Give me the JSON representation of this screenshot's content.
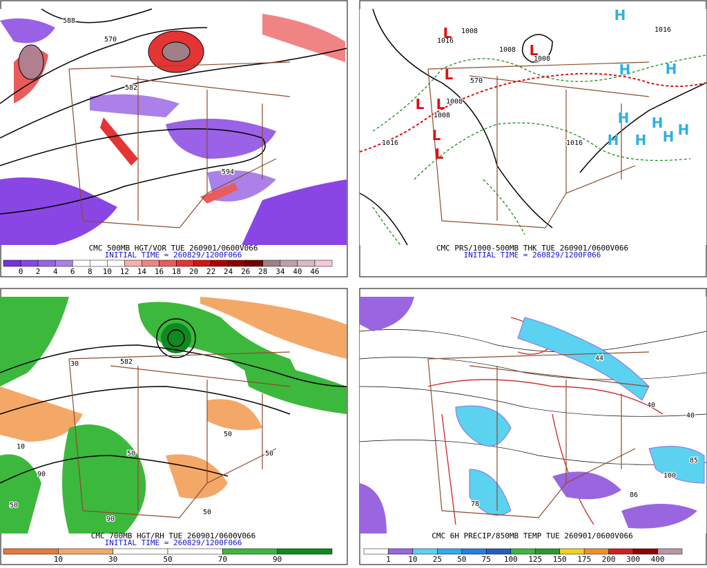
{
  "panels": [
    {
      "title": "CMC 500MB HGT/VOR TUE 260901/0600V066",
      "initial": "INITIAL TIME = 260829/1200F066",
      "colorbar": {
        "labels": [
          "0",
          "2",
          "4",
          "6",
          "8",
          "10",
          "12",
          "14",
          "16",
          "18",
          "20",
          "22",
          "24",
          "26",
          "28",
          "34",
          "40",
          "46"
        ],
        "colors": [
          "#7a2ee0",
          "#8a46e4",
          "#9a62e6",
          "#ab80e8",
          "#ffffff",
          "#ffffff",
          "#ffffff",
          "#f6b0b0",
          "#f08484",
          "#ea5c5c",
          "#e43434",
          "#d41414",
          "#b00000",
          "#900000",
          "#700000",
          "#a08088",
          "#c0a0a8",
          "#dcb8c0",
          "#f8c8d4"
        ]
      },
      "labels": [
        "588",
        "570",
        "582",
        "594"
      ]
    },
    {
      "title": "CMC PRS/1000-500MB THK TUE 260901/0600V066",
      "initial": "INITIAL TIME = 260829/1200F066",
      "labels": [
        "1008",
        "1016",
        "1008",
        "1008",
        "1008",
        "570",
        "1016",
        "1016",
        "1008",
        "1016",
        "L",
        "L",
        "L",
        "L",
        "L",
        "L",
        "L",
        "H",
        "H",
        "H",
        "H",
        "H",
        "H",
        "H",
        "H",
        "H"
      ]
    },
    {
      "title": "CMC 700MB HGT/RH TUE 260901/0600V066",
      "initial": "INITIAL TIME = 260829/1200F066",
      "colorbar": {
        "labels": [
          "10",
          "30",
          "50",
          "70",
          "90"
        ],
        "colors": [
          "#e8783a",
          "#f4a868",
          "#ffffff",
          "#ffffff",
          "#3cb83c",
          "#0e8a1e"
        ]
      },
      "labels": [
        "582",
        "50",
        "50",
        "90",
        "90",
        "10",
        "50",
        "50",
        "50",
        "30"
      ]
    },
    {
      "title": "CMC 6H PRECIP/850MB TEMP TUE 260901/0600V066",
      "colorbar": {
        "labels": [
          "1",
          "10",
          "25",
          "50",
          "75",
          "100",
          "125",
          "150",
          "175",
          "200",
          "300",
          "400"
        ],
        "colors": [
          "#ffffff",
          "#9a66e0",
          "#5ad2f0",
          "#30aaf0",
          "#2080e0",
          "#2060c0",
          "#3cb83c",
          "#2a9a2a",
          "#f0d020",
          "#f09020",
          "#d02020",
          "#900000",
          "#b898a8"
        ]
      },
      "labels": [
        "44",
        "40",
        "85",
        "100",
        "86",
        "78",
        "40"
      ]
    }
  ]
}
